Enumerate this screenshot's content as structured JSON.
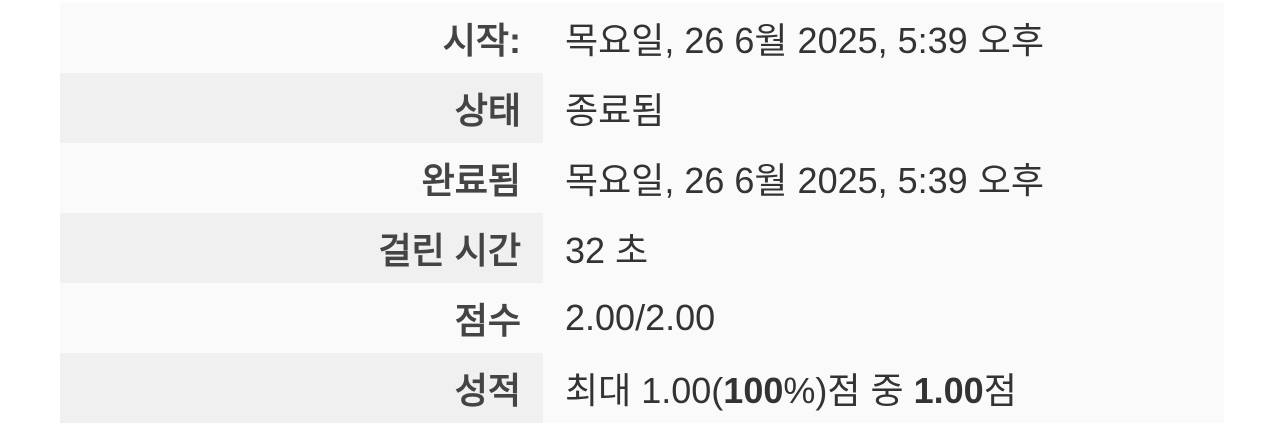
{
  "attempt_summary": {
    "rows": [
      {
        "label": "시작:",
        "value": "목요일, 26 6월 2025, 5:39 오후"
      },
      {
        "label": "상태",
        "value": "종료됨"
      },
      {
        "label": "완료됨",
        "value": "목요일, 26 6월 2025, 5:39 오후"
      },
      {
        "label": "걸린 시간",
        "value": "32 초"
      },
      {
        "label": "점수",
        "value": "2.00/2.00"
      },
      {
        "label": "성적",
        "value": {
          "prefix": "최대 1.00(",
          "percent": "100",
          "percent_suffix": "%)점 중 ",
          "grade": "1.00",
          "suffix": "점"
        }
      }
    ]
  }
}
